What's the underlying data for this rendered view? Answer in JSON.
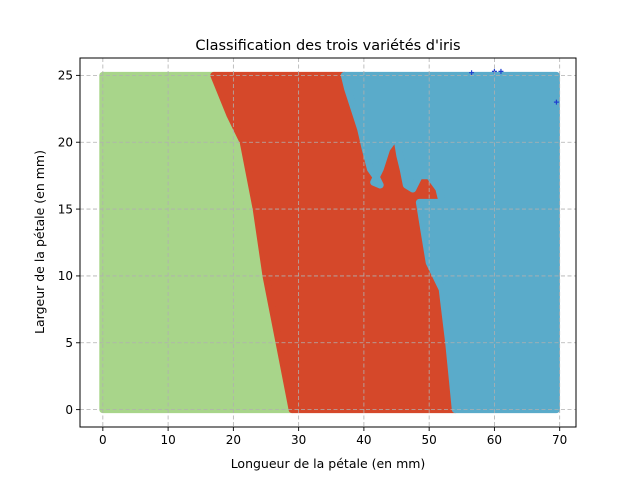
{
  "chart_data": {
    "type": "scatter",
    "title": "Classification des trois variétés d'iris",
    "xlabel": "Longueur de la pétale (en mm)",
    "ylabel": "Largeur de la pétale (en mm)",
    "xlim": [
      -3.5,
      72.5
    ],
    "ylim": [
      -1.3,
      26.3
    ],
    "xticks": [
      0,
      10,
      20,
      30,
      40,
      50,
      60,
      70
    ],
    "yticks": [
      0,
      5,
      10,
      15,
      20,
      25
    ],
    "grid": true,
    "grid_style": "dashed",
    "colors": {
      "region_green": "#a8d58a",
      "region_red": "#d5482a",
      "region_blue": "#5aabca",
      "marker_blue": "#1f3fd0",
      "grid": "#b0b0b0"
    },
    "regions": [
      {
        "class_color": "region_green",
        "polygon": [
          [
            0,
            0
          ],
          [
            29,
            0
          ],
          [
            27,
            5
          ],
          [
            25,
            10
          ],
          [
            23.5,
            15
          ],
          [
            21.5,
            20
          ],
          [
            19.5,
            22
          ],
          [
            17,
            25
          ],
          [
            0,
            25
          ]
        ]
      },
      {
        "class_color": "region_red",
        "polygon": [
          [
            29,
            0
          ],
          [
            54,
            0
          ],
          [
            53,
            5
          ],
          [
            52,
            9
          ],
          [
            50,
            11
          ],
          [
            49,
            14
          ],
          [
            48.5,
            15.5
          ],
          [
            49.5,
            15.5
          ],
          [
            52,
            15.5
          ],
          [
            51.5,
            16.5
          ],
          [
            50,
            17.5
          ],
          [
            48.5,
            17.5
          ],
          [
            47.5,
            16.5
          ],
          [
            46.5,
            16.8
          ],
          [
            46,
            18
          ],
          [
            45.5,
            19
          ],
          [
            45,
            20.5
          ],
          [
            43.5,
            19.5
          ],
          [
            42.5,
            18
          ],
          [
            41.5,
            17
          ],
          [
            42.5,
            16.8
          ],
          [
            42,
            17.3
          ],
          [
            41,
            18
          ],
          [
            40.2,
            19.5
          ],
          [
            39.5,
            21
          ],
          [
            38.5,
            22.5
          ],
          [
            37.5,
            24
          ],
          [
            37,
            25
          ],
          [
            17,
            25
          ],
          [
            19.5,
            22
          ],
          [
            21.5,
            20
          ],
          [
            23.5,
            15
          ],
          [
            25,
            10
          ],
          [
            27,
            5
          ]
        ]
      },
      {
        "class_color": "region_blue",
        "polygon": [
          [
            54,
            0
          ],
          [
            69.5,
            0
          ],
          [
            69.5,
            25
          ],
          [
            37,
            25
          ],
          [
            37.5,
            24
          ],
          [
            38.5,
            22.5
          ],
          [
            39.5,
            21
          ],
          [
            40.2,
            19.5
          ],
          [
            41,
            18
          ],
          [
            42,
            17.3
          ],
          [
            42.5,
            16.8
          ],
          [
            41.5,
            17
          ],
          [
            42.5,
            18
          ],
          [
            43.5,
            19.5
          ],
          [
            45,
            20.5
          ],
          [
            45.5,
            19
          ],
          [
            46,
            18
          ],
          [
            46.5,
            16.8
          ],
          [
            47.5,
            16.5
          ],
          [
            48.5,
            17.5
          ],
          [
            50,
            17.5
          ],
          [
            51.5,
            16.5
          ],
          [
            52,
            15.5
          ],
          [
            49.5,
            15.5
          ],
          [
            48.5,
            15.5
          ],
          [
            49,
            14
          ],
          [
            50,
            11
          ],
          [
            52,
            9
          ],
          [
            53,
            5
          ]
        ]
      }
    ],
    "marked_points": [
      {
        "x": 56.5,
        "y": 25.2
      },
      {
        "x": 60,
        "y": 25.3
      },
      {
        "x": 61,
        "y": 25.3
      },
      {
        "x": 69.5,
        "y": 23
      }
    ]
  }
}
